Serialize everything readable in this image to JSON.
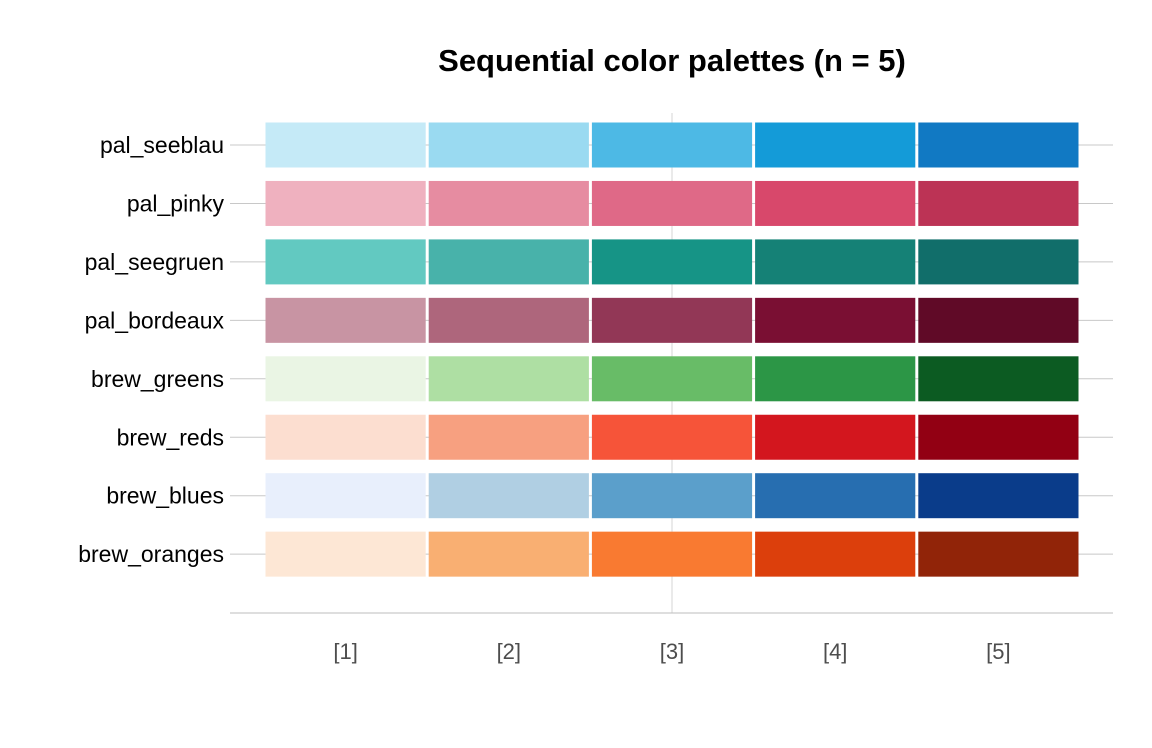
{
  "chart_data": {
    "type": "heatmap",
    "title": "Sequential color palettes (n = 5)",
    "xlabel": "",
    "ylabel": "",
    "grid": true,
    "legend": "none",
    "x_categories": [
      "[1]",
      "[2]",
      "[3]",
      "[4]",
      "[5]"
    ],
    "rows": [
      {
        "name": "pal_seeblau",
        "colors": [
          "#C5EAF7",
          "#9ADAF1",
          "#4DB9E5",
          "#149BD8",
          "#1179C3"
        ]
      },
      {
        "name": "pal_pinky",
        "colors": [
          "#EFB1BF",
          "#E68CA1",
          "#DF6987",
          "#D8486B",
          "#BC3355"
        ]
      },
      {
        "name": "pal_seegruen",
        "colors": [
          "#62C9C1",
          "#48B2AA",
          "#169486",
          "#158176",
          "#116E6A"
        ]
      },
      {
        "name": "pal_bordeaux",
        "colors": [
          "#C894A3",
          "#AE667C",
          "#923756",
          "#7A0F33",
          "#600A27"
        ]
      },
      {
        "name": "brew_greens",
        "colors": [
          "#EAF5E4",
          "#AEDFA3",
          "#68BC67",
          "#2C9646",
          "#0C5B22"
        ]
      },
      {
        "name": "brew_reds",
        "colors": [
          "#FCDED0",
          "#F7A080",
          "#F65439",
          "#D3161E",
          "#920013"
        ]
      },
      {
        "name": "brew_blues",
        "colors": [
          "#E8EFFC",
          "#B0CFE3",
          "#5B9FCB",
          "#276EB0",
          "#0A3C8A"
        ]
      },
      {
        "name": "brew_oranges",
        "colors": [
          "#FDE7D5",
          "#F9AF72",
          "#F97A31",
          "#DC3F0C",
          "#912408"
        ]
      }
    ]
  }
}
